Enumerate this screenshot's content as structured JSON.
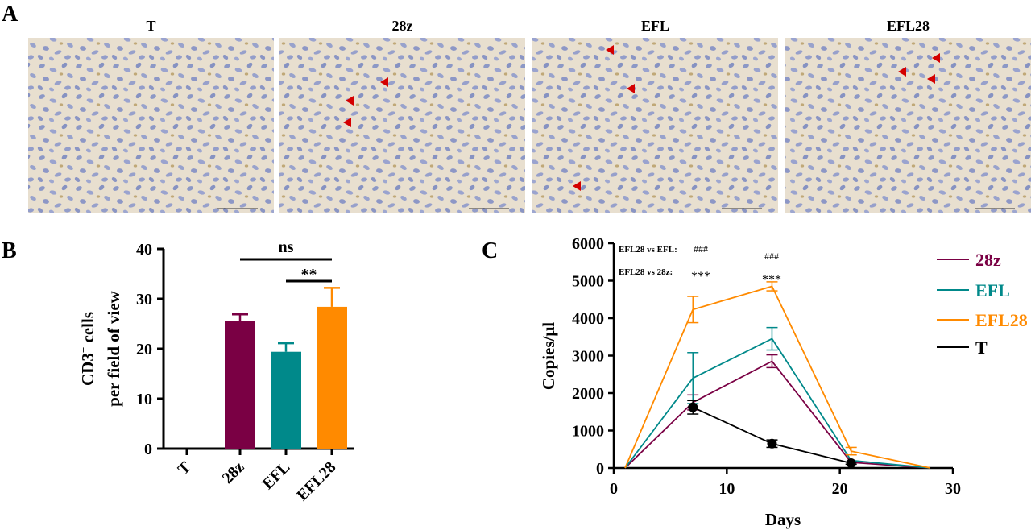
{
  "panel_a": {
    "letter": "A",
    "micrographs": [
      {
        "label": "T",
        "arrows": 0
      },
      {
        "label": "28z",
        "arrows": 3
      },
      {
        "label": "EFL",
        "arrows": 3
      },
      {
        "label": "EFL28",
        "arrows": 3
      }
    ],
    "tissue_color": "#e8dfcf",
    "nucleus_color": "#8c98c6",
    "arrow_color": "#d40000"
  },
  "chart_data": [
    {
      "panel_letter": "B",
      "type": "bar",
      "categories": [
        "T",
        "28z",
        "EFL",
        "EFL28"
      ],
      "values": [
        0,
        25.5,
        19.4,
        28.4
      ],
      "error": [
        0,
        1.4,
        1.7,
        3.8
      ],
      "colors": [
        "#7a0044",
        "#7a0044",
        "#00898a",
        "#ff8a00"
      ],
      "ylabel_line1": "CD3",
      "ylabel_sup": "+",
      "ylabel_line1_rest": " cells",
      "ylabel_line2": "per field of view",
      "ylim": [
        0,
        40
      ],
      "yticks": [
        0,
        10,
        20,
        30,
        40
      ],
      "significance": [
        {
          "from": "28z",
          "to": "EFL28",
          "label": "ns"
        },
        {
          "from": "EFL",
          "to": "EFL28",
          "label": "**"
        }
      ]
    },
    {
      "panel_letter": "C",
      "type": "line",
      "xlabel": "Days",
      "ylabel": "Copies/μl",
      "xlim": [
        0,
        30
      ],
      "ylim": [
        0,
        6000
      ],
      "xticks": [
        0,
        10,
        20,
        30
      ],
      "yticks": [
        0,
        1000,
        2000,
        3000,
        4000,
        5000,
        6000
      ],
      "series": [
        {
          "name": "28z",
          "color": "#7a0044",
          "points": [
            {
              "x": 1,
              "y": 0,
              "err": 0
            },
            {
              "x": 7,
              "y": 1750,
              "err": 200
            },
            {
              "x": 14,
              "y": 2850,
              "err": 170
            },
            {
              "x": 21,
              "y": 150,
              "err": 0
            },
            {
              "x": 28,
              "y": 0,
              "err": 0
            }
          ]
        },
        {
          "name": "EFL",
          "color": "#00898a",
          "points": [
            {
              "x": 1,
              "y": 0,
              "err": 0
            },
            {
              "x": 7,
              "y": 2400,
              "err": 680
            },
            {
              "x": 14,
              "y": 3450,
              "err": 300
            },
            {
              "x": 21,
              "y": 200,
              "err": 0
            },
            {
              "x": 28,
              "y": 0,
              "err": 0
            }
          ]
        },
        {
          "name": "EFL28",
          "color": "#ff8a00",
          "points": [
            {
              "x": 1,
              "y": 0,
              "err": 0
            },
            {
              "x": 7,
              "y": 4230,
              "err": 350
            },
            {
              "x": 14,
              "y": 4850,
              "err": 120
            },
            {
              "x": 21,
              "y": 450,
              "err": 100
            },
            {
              "x": 28,
              "y": 0,
              "err": 0
            }
          ]
        },
        {
          "name": "T",
          "color": "#000000",
          "markers": true,
          "points": [
            {
              "x": 7,
              "y": 1620,
              "err": 180
            },
            {
              "x": 14,
              "y": 650,
              "err": 100
            },
            {
              "x": 21,
              "y": 130,
              "err": 30
            }
          ]
        }
      ],
      "annotations": {
        "row1_label": "EFL28 vs EFL:",
        "row1_day7": "###",
        "row1_day14": "###",
        "row2_label": "EFL28 vs 28z:",
        "row2_day7": "***",
        "row2_day14": "***"
      }
    }
  ]
}
